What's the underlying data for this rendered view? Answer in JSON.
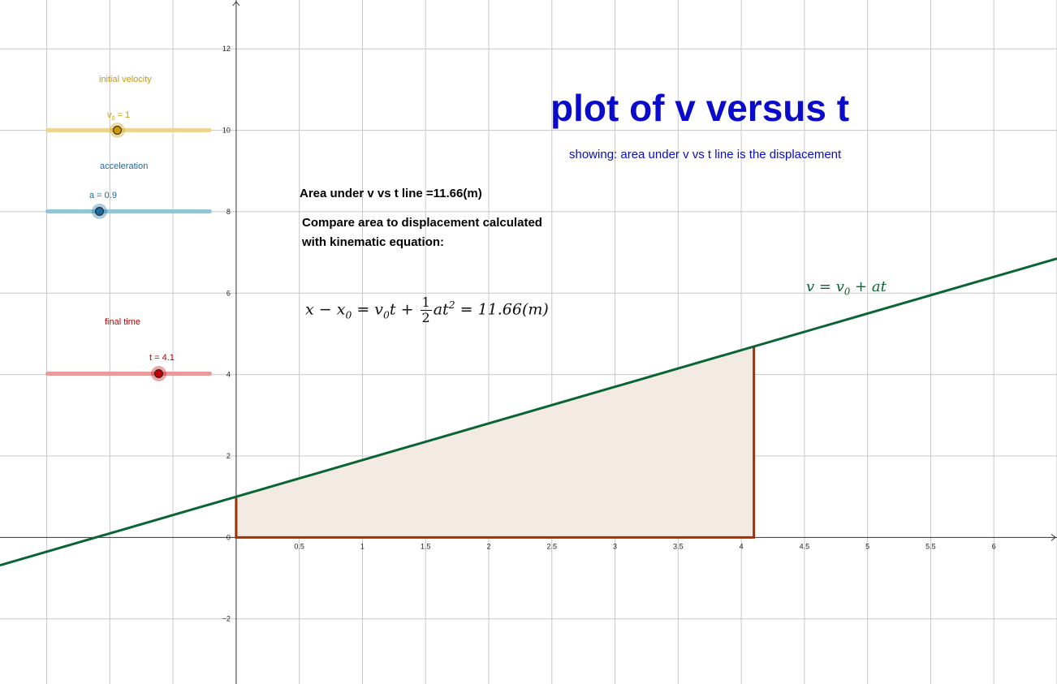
{
  "sliders": [
    {
      "id": "initial-velocity",
      "label": "initial velocity",
      "var": "v",
      "sub": "0",
      "value_text": " = 1",
      "color": "#cc9900",
      "track": "#ecd592",
      "value": 1
    },
    {
      "id": "acceleration",
      "label": "acceleration",
      "var": "a",
      "sub": "",
      "value_text": " = 0.9",
      "color": "#1a6a9e",
      "track": "#96c5d8",
      "value": 0.9
    },
    {
      "id": "final-time",
      "label": "final time",
      "var": "t",
      "sub": "",
      "value_text": " = 4.1",
      "color": "#c00000",
      "track": "#ec9999",
      "value": 4.1
    }
  ],
  "title": "plot of v versus t",
  "subtitle": "showing: area under v vs t line is the displacement",
  "area_text": "Area under v vs t line =11.66(m)",
  "compare_line1": "Compare area to displacement calculated",
  "compare_line2": "with kinematic equation:",
  "equation": {
    "lhs": "x − x",
    "lhs_sub": "0",
    "eq1": " = v",
    "v_sub": "0",
    "t_plus": "t + ",
    "frac_num": "1",
    "frac_den": "2",
    "at": "at",
    "sq": "2",
    "rhs": " = 11.66(m)"
  },
  "line_label": {
    "v": "v = v",
    "sub": "0",
    "rest": " + at"
  },
  "chart_data": {
    "type": "line",
    "x_ticks": [
      "0.5",
      "1",
      "1.5",
      "2",
      "2.5",
      "3",
      "3.5",
      "4",
      "4.5",
      "5",
      "5.5",
      "6"
    ],
    "y_ticks": [
      "12",
      "10",
      "8",
      "6",
      "4",
      "2",
      "0",
      "−2"
    ],
    "xlim": [
      -1.87,
      6.5
    ],
    "ylim": [
      -3.6,
      13.2
    ],
    "grid": true,
    "line": {
      "v0": 1,
      "a": 0.9
    },
    "area": {
      "t_end": 4.1,
      "value": 11.66
    },
    "colors": {
      "line": "#0a6434",
      "area_stroke": "#a33000",
      "area_fill": "#f3eae4"
    }
  }
}
